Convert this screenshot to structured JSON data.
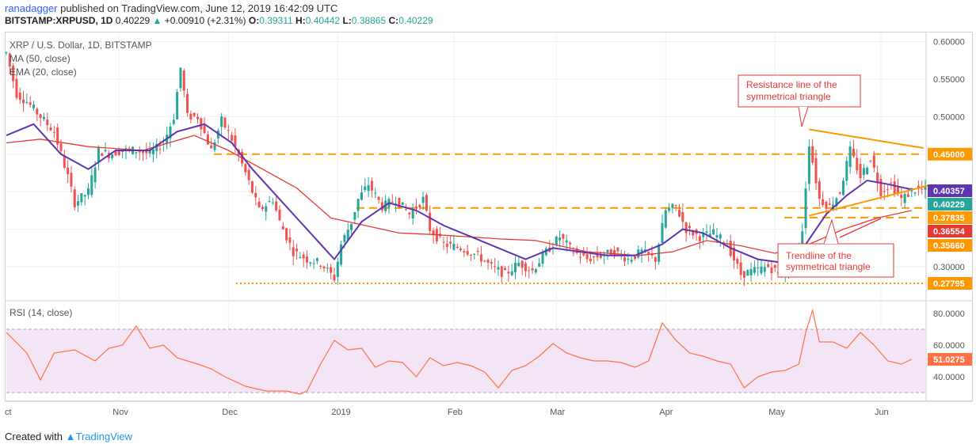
{
  "header": {
    "user": "ranadagger",
    "published": " published on TradingView.com, June 12, 2019 16:42:09 UTC",
    "symbol": "BITSTAMP:XRPUSD, 1D",
    "last": "0.40229",
    "change": "+0.00910 (+2.31%)",
    "open_label": "O:",
    "open": "0.39311",
    "high_label": "H:",
    "high": "0.40442",
    "low_label": "L:",
    "low": "0.38865",
    "close_label": "C:",
    "close": "0.40229"
  },
  "legend": {
    "title": "XRP / U.S. Dollar, 1D, BITSTAMP",
    "ma": "MA (50, close)",
    "ema": "EMA (20, close)",
    "rsi": "RSI (14, close)"
  },
  "footer": {
    "created": "Created with",
    "brand": "TradingView"
  },
  "annotations": {
    "resistance": [
      "Resistance line of the",
      "symmetrical triangle"
    ],
    "trendline": [
      "Trendline of the",
      "symmetrical triangle"
    ]
  },
  "colors": {
    "up": "#26a69a",
    "down": "#ef5350",
    "ma": "#e53935",
    "ema": "#5e35b1",
    "level": "#ff9800",
    "rsi": "#ff7043",
    "rsi_band": "#f3e5f5",
    "note": "#e53935"
  },
  "chart_data": [
    {
      "type": "candlestick",
      "title": "XRP / U.S. Dollar, 1D, BITSTAMP",
      "ylim": [
        0.26,
        0.61
      ],
      "price_ticks": [
        "0.60000",
        "0.55000",
        "0.50000",
        "0.45000",
        "0.40000",
        "0.35000",
        "0.30000"
      ],
      "time_labels": [
        "ct",
        "Nov",
        "Dec",
        "2019",
        "Feb",
        "Mar",
        "Apr",
        "May",
        "Jun"
      ],
      "close_path": [
        [
          0,
          0.585
        ],
        [
          3,
          0.53
        ],
        [
          6,
          0.52
        ],
        [
          10,
          0.5
        ],
        [
          14,
          0.48
        ],
        [
          18,
          0.42
        ],
        [
          20,
          0.385
        ],
        [
          24,
          0.4
        ],
        [
          27,
          0.455
        ],
        [
          30,
          0.45
        ],
        [
          34,
          0.455
        ],
        [
          38,
          0.455
        ],
        [
          42,
          0.45
        ],
        [
          46,
          0.465
        ],
        [
          49,
          0.5
        ],
        [
          51,
          0.565
        ],
        [
          53,
          0.5
        ],
        [
          56,
          0.5
        ],
        [
          60,
          0.455
        ],
        [
          63,
          0.495
        ],
        [
          66,
          0.47
        ],
        [
          70,
          0.425
        ],
        [
          74,
          0.375
        ],
        [
          78,
          0.39
        ],
        [
          80,
          0.36
        ],
        [
          84,
          0.32
        ],
        [
          88,
          0.31
        ],
        [
          92,
          0.305
        ],
        [
          96,
          0.285
        ],
        [
          98,
          0.33
        ],
        [
          101,
          0.36
        ],
        [
          103,
          0.39
        ],
        [
          106,
          0.41
        ],
        [
          110,
          0.38
        ],
        [
          114,
          0.39
        ],
        [
          118,
          0.37
        ],
        [
          122,
          0.39
        ],
        [
          124,
          0.35
        ],
        [
          128,
          0.33
        ],
        [
          133,
          0.325
        ],
        [
          138,
          0.315
        ],
        [
          142,
          0.3
        ],
        [
          146,
          0.29
        ],
        [
          150,
          0.305
        ],
        [
          154,
          0.295
        ],
        [
          158,
          0.32
        ],
        [
          162,
          0.34
        ],
        [
          166,
          0.32
        ],
        [
          170,
          0.31
        ],
        [
          174,
          0.315
        ],
        [
          178,
          0.32
        ],
        [
          182,
          0.31
        ],
        [
          186,
          0.32
        ],
        [
          190,
          0.31
        ],
        [
          193,
          0.375
        ],
        [
          196,
          0.38
        ],
        [
          199,
          0.35
        ],
        [
          203,
          0.34
        ],
        [
          207,
          0.345
        ],
        [
          211,
          0.33
        ],
        [
          215,
          0.29
        ],
        [
          219,
          0.295
        ],
        [
          223,
          0.3
        ],
        [
          227,
          0.29
        ],
        [
          231,
          0.305
        ],
        [
          233,
          0.35
        ],
        [
          235,
          0.465
        ],
        [
          238,
          0.39
        ],
        [
          241,
          0.38
        ],
        [
          244,
          0.4
        ],
        [
          247,
          0.455
        ],
        [
          250,
          0.42
        ],
        [
          253,
          0.445
        ],
        [
          256,
          0.4
        ],
        [
          259,
          0.41
        ],
        [
          262,
          0.39
        ],
        [
          264,
          0.397
        ],
        [
          265,
          0.402
        ]
      ],
      "ma50_path": [
        [
          0,
          0.465
        ],
        [
          10,
          0.47
        ],
        [
          24,
          0.46
        ],
        [
          40,
          0.455
        ],
        [
          55,
          0.475
        ],
        [
          65,
          0.455
        ],
        [
          75,
          0.43
        ],
        [
          85,
          0.405
        ],
        [
          95,
          0.365
        ],
        [
          105,
          0.355
        ],
        [
          115,
          0.345
        ],
        [
          125,
          0.343
        ],
        [
          135,
          0.34
        ],
        [
          145,
          0.337
        ],
        [
          155,
          0.335
        ],
        [
          170,
          0.32
        ],
        [
          185,
          0.315
        ],
        [
          195,
          0.32
        ],
        [
          205,
          0.335
        ],
        [
          215,
          0.328
        ],
        [
          225,
          0.318
        ],
        [
          235,
          0.33
        ],
        [
          245,
          0.35
        ],
        [
          255,
          0.365
        ],
        [
          265,
          0.375
        ]
      ],
      "ema20_path": [
        [
          0,
          0.475
        ],
        [
          8,
          0.49
        ],
        [
          16,
          0.45
        ],
        [
          24,
          0.43
        ],
        [
          32,
          0.455
        ],
        [
          42,
          0.455
        ],
        [
          50,
          0.48
        ],
        [
          58,
          0.49
        ],
        [
          66,
          0.465
        ],
        [
          72,
          0.43
        ],
        [
          80,
          0.39
        ],
        [
          88,
          0.35
        ],
        [
          96,
          0.31
        ],
        [
          104,
          0.36
        ],
        [
          112,
          0.385
        ],
        [
          120,
          0.375
        ],
        [
          128,
          0.355
        ],
        [
          136,
          0.34
        ],
        [
          144,
          0.325
        ],
        [
          152,
          0.31
        ],
        [
          160,
          0.325
        ],
        [
          168,
          0.32
        ],
        [
          176,
          0.315
        ],
        [
          184,
          0.315
        ],
        [
          192,
          0.33
        ],
        [
          198,
          0.35
        ],
        [
          204,
          0.345
        ],
        [
          212,
          0.325
        ],
        [
          220,
          0.31
        ],
        [
          228,
          0.305
        ],
        [
          234,
          0.33
        ],
        [
          240,
          0.37
        ],
        [
          246,
          0.395
        ],
        [
          252,
          0.415
        ],
        [
          258,
          0.41
        ],
        [
          265,
          0.403
        ]
      ],
      "levels": [
        {
          "value": 0.45,
          "label": "0.45000"
        },
        {
          "value": 0.40357,
          "label": "0.40357"
        },
        {
          "value": 0.40229,
          "label": "0.40229"
        },
        {
          "value": 0.37835,
          "label": "0.37835"
        },
        {
          "value": 0.36554,
          "label": "0.36554"
        },
        {
          "value": 0.3566,
          "label": "0.35660"
        },
        {
          "value": 0.27795,
          "label": "0.27795"
        }
      ],
      "resistance_line": [
        [
          235,
          0.483
        ],
        [
          265,
          0.455
        ]
      ],
      "trendline": [
        [
          235,
          0.368
        ],
        [
          265,
          0.405
        ]
      ]
    },
    {
      "type": "line",
      "title": "RSI (14, close)",
      "ylim": [
        25,
        86
      ],
      "ticks": [
        "80.0000",
        "60.0000",
        "40.0000"
      ],
      "band": [
        30,
        70
      ],
      "last": "51.0275",
      "path": [
        [
          0,
          68
        ],
        [
          6,
          55
        ],
        [
          10,
          38
        ],
        [
          14,
          55
        ],
        [
          20,
          57
        ],
        [
          26,
          50
        ],
        [
          30,
          58
        ],
        [
          34,
          60
        ],
        [
          38,
          72
        ],
        [
          42,
          58
        ],
        [
          46,
          60
        ],
        [
          50,
          52
        ],
        [
          56,
          48
        ],
        [
          60,
          45
        ],
        [
          64,
          40
        ],
        [
          70,
          34
        ],
        [
          76,
          31
        ],
        [
          82,
          31
        ],
        [
          86,
          29
        ],
        [
          88,
          31
        ],
        [
          92,
          48
        ],
        [
          96,
          63
        ],
        [
          100,
          57
        ],
        [
          104,
          58
        ],
        [
          108,
          46
        ],
        [
          112,
          50
        ],
        [
          116,
          49
        ],
        [
          120,
          40
        ],
        [
          124,
          52
        ],
        [
          128,
          47
        ],
        [
          132,
          49
        ],
        [
          136,
          47
        ],
        [
          140,
          43
        ],
        [
          144,
          33
        ],
        [
          148,
          44
        ],
        [
          152,
          47
        ],
        [
          156,
          53
        ],
        [
          160,
          61
        ],
        [
          164,
          55
        ],
        [
          168,
          52
        ],
        [
          172,
          50
        ],
        [
          176,
          50
        ],
        [
          180,
          49
        ],
        [
          184,
          46
        ],
        [
          188,
          50
        ],
        [
          192,
          74
        ],
        [
          196,
          63
        ],
        [
          200,
          55
        ],
        [
          204,
          53
        ],
        [
          208,
          50
        ],
        [
          212,
          48
        ],
        [
          216,
          33
        ],
        [
          220,
          40
        ],
        [
          224,
          43
        ],
        [
          228,
          44
        ],
        [
          232,
          48
        ],
        [
          234,
          68
        ],
        [
          236,
          82
        ],
        [
          238,
          62
        ],
        [
          242,
          62
        ],
        [
          246,
          58
        ],
        [
          250,
          68
        ],
        [
          254,
          60
        ],
        [
          258,
          50
        ],
        [
          262,
          48
        ],
        [
          265,
          51
        ]
      ]
    }
  ]
}
